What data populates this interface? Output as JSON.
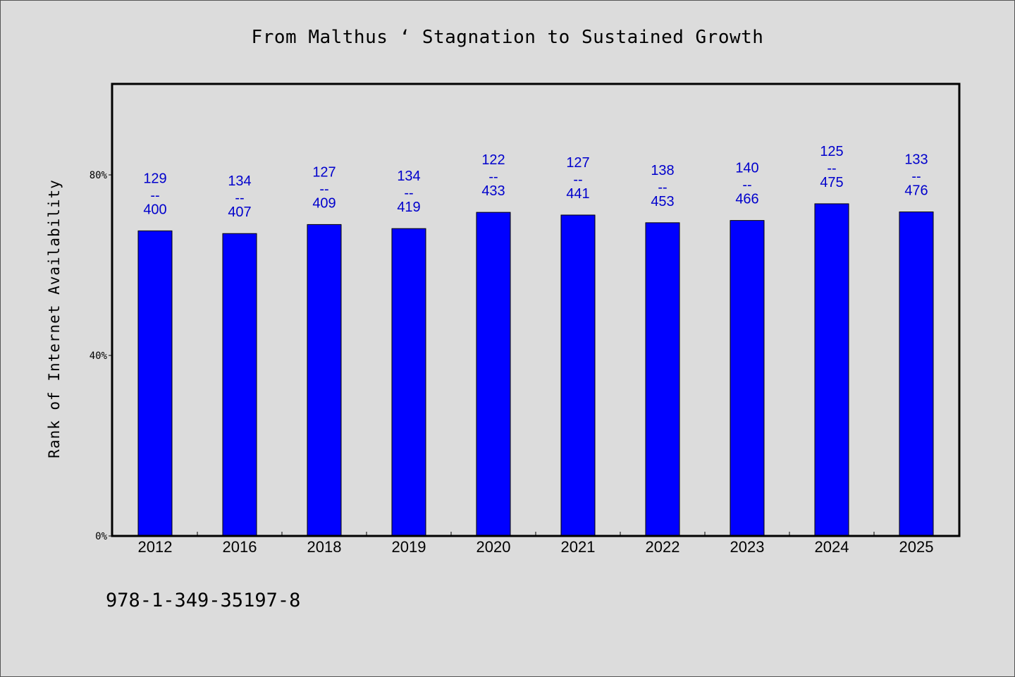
{
  "chart_data": {
    "type": "bar",
    "title": "From Malthus ‘ Stagnation to Sustained Growth",
    "xlabel": "",
    "ylabel": "Rank of Internet Availability",
    "categories": [
      "2012",
      "2016",
      "2018",
      "2019",
      "2020",
      "2021",
      "2022",
      "2023",
      "2024",
      "2025"
    ],
    "values": [
      67.6,
      67.0,
      69.0,
      68.1,
      71.7,
      71.1,
      69.4,
      69.9,
      73.6,
      71.8
    ],
    "value_unit": "%",
    "bar_labels": [
      {
        "top": "129",
        "sep": "--",
        "bottom": "400"
      },
      {
        "top": "134",
        "sep": "--",
        "bottom": "407"
      },
      {
        "top": "127",
        "sep": "--",
        "bottom": "409"
      },
      {
        "top": "134",
        "sep": "--",
        "bottom": "419"
      },
      {
        "top": "122",
        "sep": "--",
        "bottom": "433"
      },
      {
        "top": "127",
        "sep": "--",
        "bottom": "441"
      },
      {
        "top": "138",
        "sep": "--",
        "bottom": "453"
      },
      {
        "top": "140",
        "sep": "--",
        "bottom": "466"
      },
      {
        "top": "125",
        "sep": "--",
        "bottom": "475"
      },
      {
        "top": "133",
        "sep": "--",
        "bottom": "476"
      }
    ],
    "ylim": [
      0,
      100
    ],
    "yticks": [
      0,
      40,
      80
    ],
    "ytick_labels": [
      "0%",
      "40%",
      "80%"
    ],
    "grid": false,
    "legend": "none",
    "colors": {
      "bar": "#0000ff",
      "bar_label": "#0000cc",
      "background": "#dcdcdc",
      "plot_background": "#ffffff"
    }
  },
  "footnote": "978-1-349-35197-8"
}
